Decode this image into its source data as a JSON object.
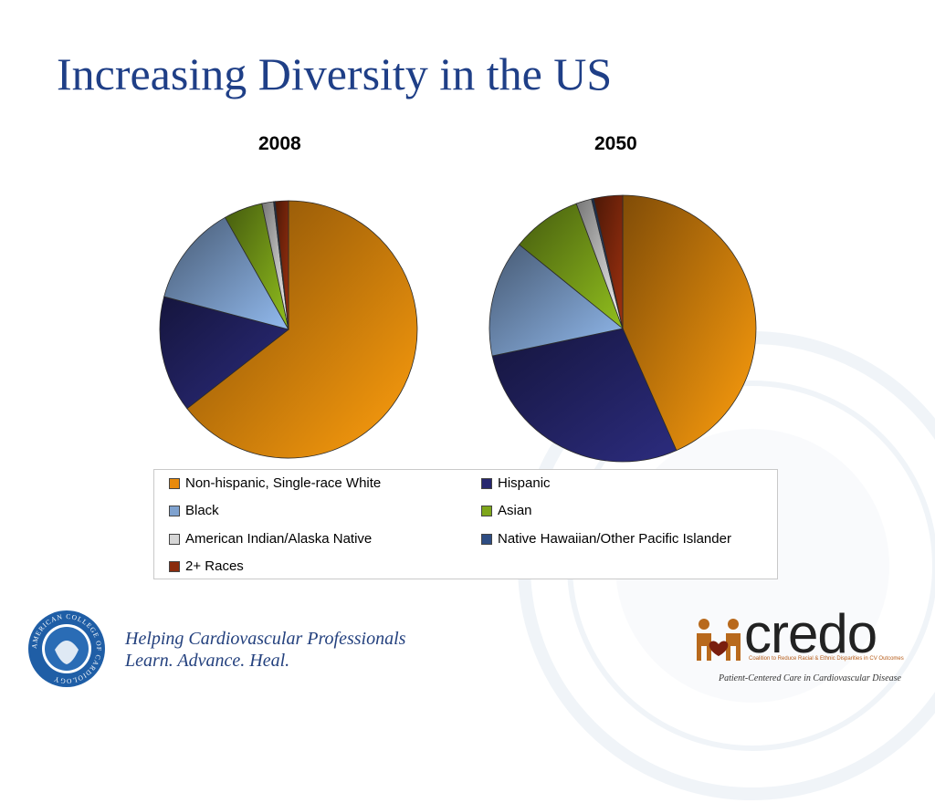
{
  "slide": {
    "title": "Increasing Diversity in the US"
  },
  "colors": {
    "title": "#1f3f87",
    "white_nonhispanic": "#e88a0c",
    "hispanic": "#26266e",
    "black": "#7fa2cf",
    "asian": "#7ea61a",
    "american_indian": "#d6d6d6",
    "native_hawaiian": "#2e4d83",
    "two_plus": "#8a2b0d"
  },
  "legend": {
    "items": [
      {
        "label": "Non-hispanic, Single-race White",
        "color": "#e88a0c"
      },
      {
        "label": "Hispanic",
        "color": "#26266e"
      },
      {
        "label": "Black",
        "color": "#7fa2cf"
      },
      {
        "label": "Asian",
        "color": "#7ea61a"
      },
      {
        "label": "American Indian/Alaska Native",
        "color": "#d6d6d6"
      },
      {
        "label": "Native Hawaiian/Other Pacific Islander",
        "color": "#2e4d83"
      },
      {
        "label": "2+ Races",
        "color": "#8a2b0d"
      }
    ]
  },
  "chart_data": [
    {
      "type": "pie",
      "title": "2008",
      "categories": [
        "Non-hispanic, Single-race White",
        "Hispanic",
        "Black",
        "Asian",
        "American Indian/Alaska Native",
        "Native Hawaiian/Other Pacific Islander",
        "2+ Races"
      ],
      "values": [
        66,
        15,
        13,
        5,
        1.5,
        0.2,
        1.7
      ],
      "unit": "percent",
      "legend_position": "bottom"
    },
    {
      "type": "pie",
      "title": "2050",
      "categories": [
        "Non-hispanic, Single-race White",
        "Hispanic",
        "Black",
        "Asian",
        "American Indian/Alaska Native",
        "Native Hawaiian/Other Pacific Islander",
        "2+ Races"
      ],
      "values": [
        46,
        30,
        15,
        9,
        2,
        0.3,
        3.7
      ],
      "unit": "percent",
      "legend_position": "bottom"
    }
  ],
  "footer": {
    "tagline_line1": "Helping Cardiovascular Professionals",
    "tagline_line2": "Learn. Advance. Heal.",
    "seal_text": "AMERICAN COLLEGE OF CARDIOLOGY",
    "credo_logo": "credo",
    "credo_subtitle": "Coalition to Reduce Racial & Ethnic Disparities in CV Outcomes",
    "credo_tagline": "Patient-Centered Care in Cardiovascular Disease"
  }
}
